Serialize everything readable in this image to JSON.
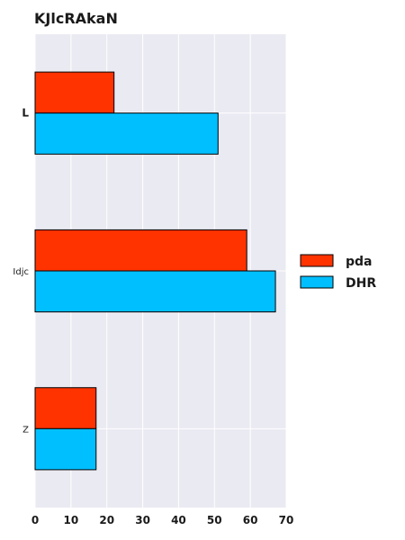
{
  "chart_data": {
    "type": "bar",
    "orientation": "horizontal",
    "title": "KJlcRAkaN",
    "xlabel": "",
    "ylabel": "",
    "categories": [
      "L",
      "Idjc",
      "Z"
    ],
    "series": [
      {
        "name": "pda",
        "values": [
          22,
          59,
          17
        ],
        "color": "#ff3300"
      },
      {
        "name": "DHR",
        "values": [
          51,
          67,
          17
        ],
        "color": "#00bfff"
      }
    ],
    "xlim": [
      0,
      70
    ],
    "xticks": [
      0,
      10,
      20,
      30,
      40,
      50,
      60,
      70
    ],
    "grid": true,
    "legend_position": "right",
    "background": "#eaeaf2"
  }
}
